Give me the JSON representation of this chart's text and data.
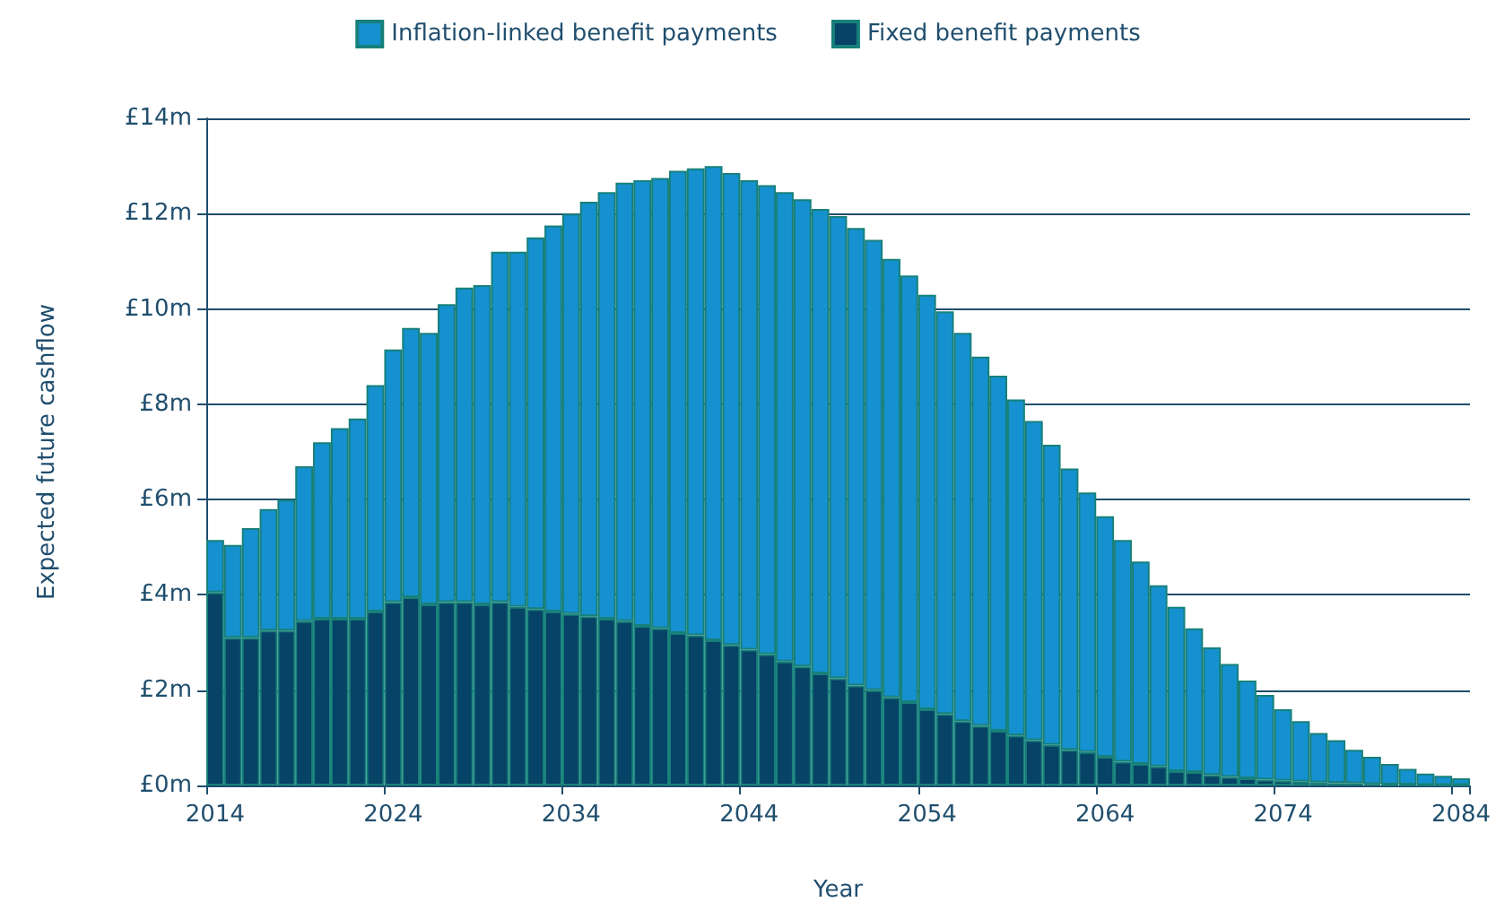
{
  "chart_data": {
    "type": "bar",
    "stacked": true,
    "xlabel": "Year",
    "ylabel": "Expected future cashflow",
    "categories": [
      "2014",
      null,
      null,
      null,
      null,
      null,
      null,
      null,
      null,
      null,
      "2024",
      null,
      null,
      null,
      null,
      null,
      null,
      null,
      null,
      null,
      "2034",
      null,
      null,
      null,
      null,
      null,
      null,
      null,
      null,
      null,
      "2044",
      null,
      null,
      null,
      null,
      null,
      null,
      null,
      null,
      null,
      "2054",
      null,
      null,
      null,
      null,
      null,
      null,
      null,
      null,
      null,
      "2064",
      null,
      null,
      null,
      null,
      null,
      null,
      null,
      null,
      null,
      "2074",
      null,
      null,
      null,
      null,
      null,
      null,
      null,
      null,
      null,
      "2084"
    ],
    "series": [
      {
        "name": "Fixed benefit payments",
        "color": "#064366",
        "values": [
          4.05,
          3.1,
          3.1,
          3.25,
          3.25,
          3.45,
          3.5,
          3.5,
          3.5,
          3.65,
          3.85,
          3.95,
          3.8,
          3.85,
          3.85,
          3.8,
          3.85,
          3.75,
          3.7,
          3.65,
          3.6,
          3.55,
          3.5,
          3.45,
          3.35,
          3.3,
          3.2,
          3.15,
          3.05,
          2.95,
          2.85,
          2.75,
          2.6,
          2.5,
          2.35,
          2.25,
          2.1,
          2.0,
          1.85,
          1.75,
          1.6,
          1.5,
          1.35,
          1.25,
          1.15,
          1.05,
          0.95,
          0.85,
          0.75,
          0.7,
          0.6,
          0.5,
          0.45,
          0.4,
          0.3,
          0.28,
          0.22,
          0.18,
          0.15,
          0.12,
          0.1,
          0.08,
          0.06,
          0.05,
          0.04,
          0.03,
          0.02,
          0.02,
          0.01,
          0.01,
          0.01
        ]
      },
      {
        "name": "Inflation-linked benefit payments",
        "color": "#1591cf",
        "values": [
          1.1,
          1.95,
          2.3,
          2.55,
          2.75,
          3.25,
          3.7,
          4.0,
          4.2,
          4.75,
          5.3,
          5.65,
          5.7,
          6.25,
          6.6,
          6.7,
          7.35,
          7.45,
          7.8,
          8.1,
          8.4,
          8.7,
          8.95,
          9.2,
          9.35,
          9.45,
          9.7,
          9.8,
          9.95,
          9.9,
          9.85,
          9.85,
          9.85,
          9.8,
          9.75,
          9.7,
          9.6,
          9.45,
          9.2,
          8.95,
          8.7,
          8.45,
          8.15,
          7.75,
          7.45,
          7.05,
          6.7,
          6.3,
          5.9,
          5.45,
          5.05,
          4.65,
          4.25,
          3.8,
          3.45,
          3.02,
          2.68,
          2.37,
          2.05,
          1.78,
          1.5,
          1.27,
          1.04,
          0.9,
          0.71,
          0.57,
          0.43,
          0.33,
          0.24,
          0.19,
          0.14
        ]
      }
    ],
    "ylim": [
      0,
      14
    ],
    "yticks": [
      {
        "value": 0,
        "label": "£0m"
      },
      {
        "value": 2,
        "label": "£2m"
      },
      {
        "value": 4,
        "label": "£4m"
      },
      {
        "value": 6,
        "label": "£6m"
      },
      {
        "value": 8,
        "label": "£8m"
      },
      {
        "value": 10,
        "label": "£10m"
      },
      {
        "value": 12,
        "label": "£12m"
      },
      {
        "value": 14,
        "label": "£14m"
      }
    ],
    "grid": "y",
    "legend": "top"
  }
}
